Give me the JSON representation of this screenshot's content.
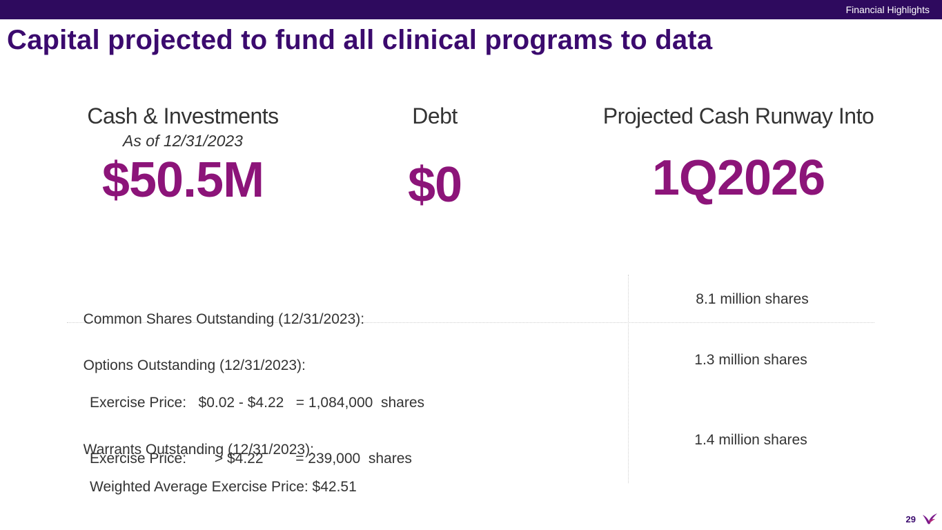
{
  "header": {
    "section_label": "Financial Highlights",
    "title": "Capital projected to fund all clinical programs to data"
  },
  "metrics": {
    "cash": {
      "label": "Cash & Investments",
      "sub": "As of 12/31/2023",
      "value": "$50.5M"
    },
    "debt": {
      "label": "Debt",
      "value": "$0"
    },
    "runway": {
      "label": "Projected Cash Runway Into",
      "value": "1Q2026"
    }
  },
  "table": {
    "rows": [
      {
        "title": "Common Shares Outstanding (12/31/2023):",
        "details": [],
        "value": "8.1 million shares"
      },
      {
        "title": "Options Outstanding (12/31/2023):",
        "details": [
          "Exercise Price:   $0.02 - $4.22   = 1,084,000  shares",
          "Exercise Price:       > $4.22        = 239,000  shares"
        ],
        "value": "1.3 million shares"
      },
      {
        "title": "Warrants Outstanding (12/31/2023):",
        "details": [
          "Weighted Average Exercise Price: $42.51"
        ],
        "value": "1.4 million shares"
      }
    ]
  },
  "footer": {
    "page_number": "29",
    "logo_icon": "bird-logo-icon"
  },
  "colors": {
    "header_bar": "#2e0a5e",
    "title": "#3b0a6e",
    "metric_value": "#8c1479"
  }
}
